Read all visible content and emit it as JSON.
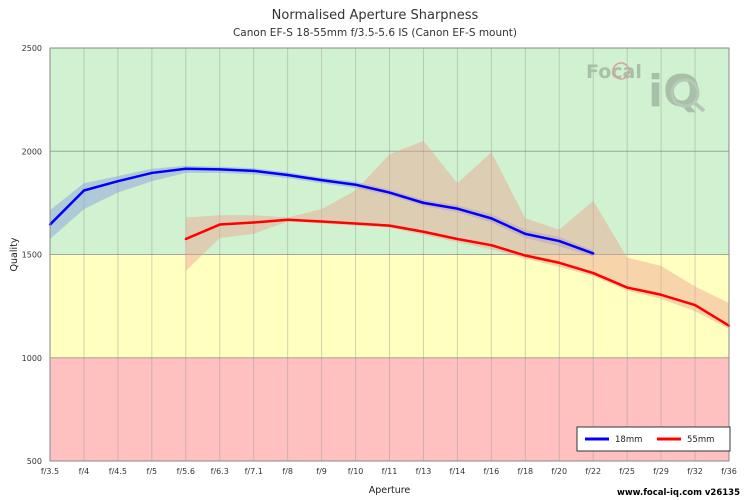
{
  "chart_data": {
    "type": "line",
    "title": "Normalised Aperture Sharpness",
    "subtitle": "Canon EF-S 18-55mm f/3.5-5.6 IS (Canon EF-S mount)",
    "xlabel": "Aperture",
    "ylabel": "Quality",
    "ylim": [
      500,
      2500
    ],
    "yticks": [
      "500",
      "1000",
      "1500",
      "2000",
      "2500"
    ],
    "categories": [
      "f/3.5",
      "f/4",
      "f/4.5",
      "f/5",
      "f/5.6",
      "f/6.3",
      "f/7.1",
      "f/8",
      "f/9",
      "f/10",
      "f/11",
      "f/13",
      "f/14",
      "f/16",
      "f/18",
      "f/20",
      "f/22",
      "f/25",
      "f/29",
      "f/32",
      "f/36"
    ],
    "zones": [
      {
        "from": 500,
        "to": 1000,
        "color": "#ffc0c0"
      },
      {
        "from": 1000,
        "to": 1500,
        "color": "#ffffc0"
      },
      {
        "from": 1500,
        "to": 2500,
        "color": "#d0f2d0"
      }
    ],
    "grid": true,
    "legend_position": "bottom-right",
    "series": [
      {
        "name": "18mm",
        "color": "#0000ff",
        "band_color": "#8899dd",
        "values": [
          1645,
          1810,
          1855,
          1895,
          1915,
          1912,
          1905,
          1885,
          1860,
          1838,
          1800,
          1750,
          1722,
          1675,
          1600,
          1565,
          1505,
          null,
          null,
          null,
          null
        ],
        "band_low": [
          1575,
          1720,
          1800,
          1855,
          1895,
          1895,
          1888,
          1870,
          1845,
          1822,
          1785,
          1735,
          1705,
          1655,
          1580,
          1540,
          1490,
          null,
          null,
          null,
          null
        ],
        "band_high": [
          1715,
          1845,
          1880,
          1915,
          1930,
          1925,
          1918,
          1898,
          1873,
          1852,
          1815,
          1765,
          1738,
          1695,
          1620,
          1585,
          1520,
          null,
          null,
          null,
          null
        ]
      },
      {
        "name": "55mm",
        "color": "#ff0000",
        "band_color": "#eea090",
        "values": [
          null,
          null,
          null,
          null,
          1575,
          1645,
          1655,
          1668,
          1660,
          1650,
          1640,
          1610,
          1575,
          1545,
          1495,
          1460,
          1410,
          1340,
          1305,
          1255,
          1155
        ],
        "band_low": [
          null,
          null,
          null,
          null,
          1420,
          1580,
          1600,
          1660,
          1650,
          1640,
          1630,
          1595,
          1560,
          1525,
          1480,
          1440,
          1395,
          1325,
          1285,
          1225,
          1140
        ],
        "band_high": [
          null,
          null,
          null,
          null,
          1680,
          1690,
          1690,
          1680,
          1720,
          1810,
          1985,
          2050,
          1845,
          1995,
          1675,
          1620,
          1760,
          1485,
          1445,
          1345,
          1265
        ]
      }
    ]
  },
  "watermark": {
    "text_top": "Focal",
    "text_bottom": "iQ"
  },
  "credit": "www.focal-iq.com  v26135"
}
